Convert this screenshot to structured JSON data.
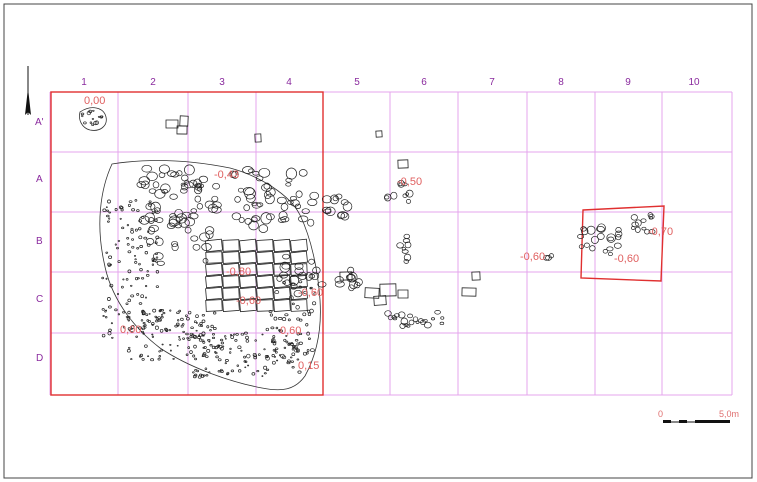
{
  "grid": {
    "columns": [
      "1",
      "2",
      "3",
      "4",
      "5",
      "6",
      "7",
      "8",
      "9",
      "10"
    ],
    "rows": [
      "A'",
      "A",
      "B",
      "C",
      "D"
    ]
  },
  "elevations": [
    "0,00",
    "-0,43",
    "-0,50",
    "-0,70",
    "-0,60",
    "-0,80",
    "-0,60",
    "0,00",
    "-0,60",
    "-0,60",
    "0,60",
    "0,15"
  ],
  "scale": {
    "start": "0",
    "end": "5,0m"
  },
  "colors": {
    "grid": "#e4a6ec",
    "labels": "#8a2a9e",
    "trench": "#e03030",
    "elevation": "#e06060",
    "stones": "#222222"
  }
}
